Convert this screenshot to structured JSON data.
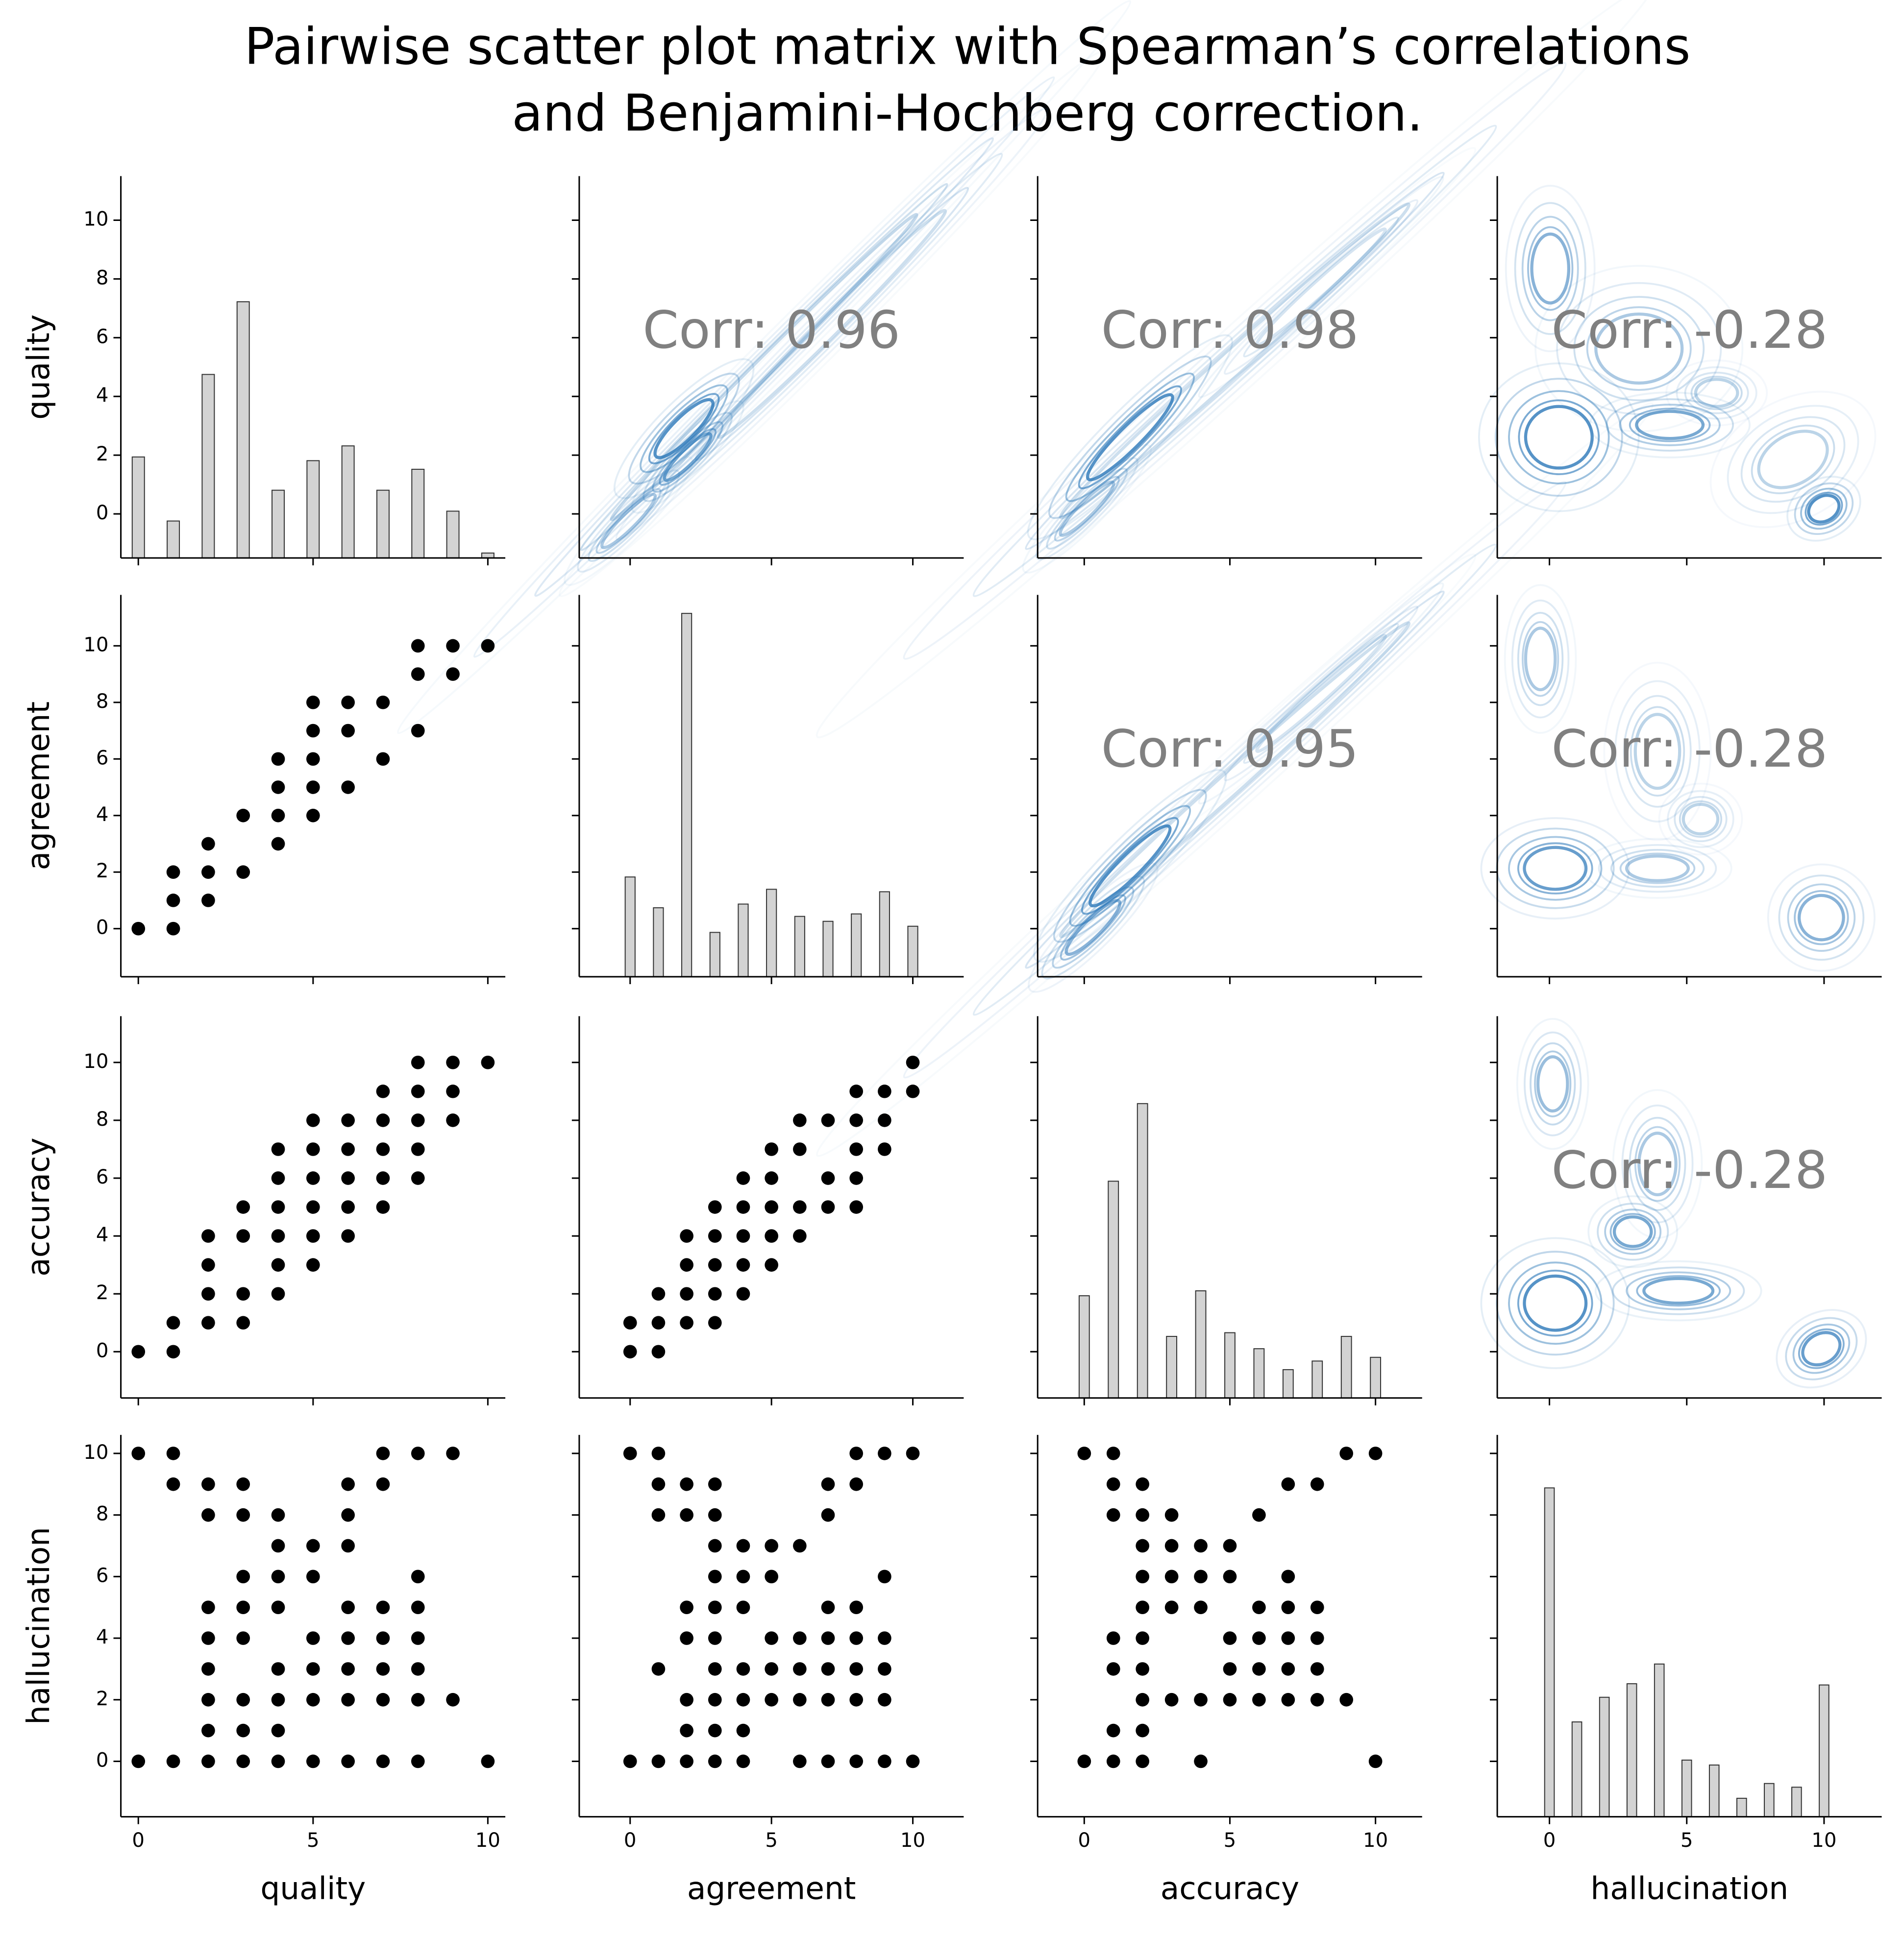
{
  "chart_data": {
    "type": "pairplot",
    "title": [
      "Pairwise scatter plot matrix with Spearman’s correlations",
      "and Benjamini-Hochberg correction."
    ],
    "variables": [
      "quality",
      "agreement",
      "accuracy",
      "hallucination"
    ],
    "axes": [
      {
        "xlim": [
          -0.5,
          10.5
        ],
        "xticks": [
          0,
          5,
          10
        ],
        "ylim": [
          -1.5,
          11.5
        ],
        "yticks": [
          0,
          2,
          4,
          6,
          8,
          10
        ]
      },
      {
        "xlim": [
          -1.8,
          11.8
        ],
        "xticks": [
          0,
          5,
          10
        ],
        "ylim": [
          -1.7,
          11.8
        ],
        "yticks": [
          0,
          2,
          4,
          6,
          8,
          10
        ]
      },
      {
        "xlim": [
          -1.6,
          11.6
        ],
        "xticks": [
          0,
          5,
          10
        ],
        "ylim": [
          -1.6,
          11.6
        ],
        "yticks": [
          0,
          2,
          4,
          6,
          8,
          10
        ]
      },
      {
        "xlim": [
          -1.9,
          12.1
        ],
        "xticks": [
          0,
          5,
          10
        ],
        "ylim": [
          -1.8,
          10.6
        ],
        "yticks": [
          0,
          2,
          4,
          6,
          8,
          10
        ]
      }
    ],
    "rows": [
      [
        {
          "type": "hist",
          "color": "#d3d3d3",
          "x": [
            0,
            1,
            2,
            3,
            4,
            5,
            6,
            7,
            8,
            9,
            10
          ],
          "values": [
            8.2,
            3.0,
            14.9,
            20.8,
            5.5,
            7.9,
            9.1,
            5.5,
            7.2,
            3.8,
            0.4
          ],
          "ylim": [
            0,
            31
          ]
        },
        {
          "type": "kde",
          "color": "#2171b5",
          "annotation": "Corr: 0.96"
        },
        {
          "type": "kde",
          "color": "#2171b5",
          "annotation": "Corr: 0.98"
        },
        {
          "type": "kde",
          "color": "#2171b5",
          "annotation": "Corr: -0.28"
        }
      ],
      [
        {
          "type": "scatter",
          "color": "#000000",
          "x": [
            0,
            1,
            1,
            1,
            2,
            2,
            2,
            3,
            3,
            4,
            4,
            4,
            4,
            5,
            5,
            5,
            5,
            5,
            6,
            6,
            6,
            7,
            7,
            8,
            8,
            8,
            9,
            9,
            10
          ],
          "y": [
            0,
            0,
            1,
            2,
            1,
            2,
            3,
            2,
            4,
            3,
            4,
            5,
            6,
            4,
            5,
            6,
            7,
            8,
            5,
            7,
            8,
            6,
            8,
            7,
            9,
            10,
            9,
            10,
            10
          ]
        },
        {
          "type": "hist",
          "color": "#d3d3d3",
          "x": [
            0,
            1,
            2,
            3,
            4,
            5,
            6,
            7,
            8,
            9,
            10
          ],
          "values": [
            8.1,
            5.6,
            29.5,
            3.6,
            5.9,
            7.1,
            4.9,
            4.5,
            5.1,
            6.9,
            4.1
          ],
          "ylim": [
            0,
            31
          ]
        },
        {
          "type": "kde",
          "color": "#2171b5",
          "annotation": "Corr: 0.95"
        },
        {
          "type": "kde",
          "color": "#2171b5",
          "annotation": "Corr: -0.28"
        }
      ],
      [
        {
          "type": "scatter",
          "color": "#000000",
          "x": [
            0,
            1,
            1,
            2,
            2,
            2,
            2,
            3,
            3,
            3,
            3,
            4,
            4,
            4,
            4,
            4,
            4,
            5,
            5,
            5,
            5,
            5,
            5,
            6,
            6,
            6,
            6,
            6,
            7,
            7,
            7,
            7,
            7,
            8,
            8,
            8,
            8,
            8,
            9,
            9,
            9,
            10
          ],
          "y": [
            0,
            0,
            1,
            1,
            2,
            3,
            4,
            1,
            2,
            4,
            5,
            2,
            3,
            4,
            5,
            6,
            7,
            3,
            4,
            5,
            6,
            7,
            8,
            4,
            5,
            6,
            7,
            8,
            5,
            6,
            7,
            8,
            9,
            6,
            7,
            8,
            9,
            10,
            8,
            9,
            10,
            10
          ]
        },
        {
          "type": "scatter",
          "color": "#000000",
          "x": [
            0,
            0,
            1,
            1,
            1,
            2,
            2,
            2,
            2,
            3,
            3,
            3,
            3,
            3,
            4,
            4,
            4,
            4,
            4,
            5,
            5,
            5,
            5,
            5,
            6,
            6,
            6,
            6,
            7,
            7,
            7,
            8,
            8,
            8,
            8,
            8,
            9,
            9,
            9,
            10,
            10
          ],
          "y": [
            0,
            1,
            0,
            1,
            2,
            1,
            2,
            3,
            4,
            1,
            2,
            3,
            4,
            5,
            2,
            3,
            4,
            5,
            6,
            3,
            4,
            5,
            6,
            7,
            4,
            5,
            7,
            8,
            5,
            6,
            8,
            5,
            6,
            7,
            8,
            9,
            7,
            8,
            9,
            9,
            10
          ]
        },
        {
          "type": "hist",
          "color": "#d3d3d3",
          "x": [
            0,
            1,
            2,
            3,
            4,
            5,
            6,
            7,
            8,
            9,
            10
          ],
          "values": [
            8.3,
            17.6,
            23.9,
            5.0,
            8.7,
            5.3,
            4.0,
            2.3,
            3.0,
            5.0,
            3.3
          ],
          "ylim": [
            0,
            31
          ]
        },
        {
          "type": "kde",
          "color": "#2171b5",
          "annotation": "Corr: -0.28"
        }
      ],
      [
        {
          "type": "scatter",
          "color": "#000000",
          "x": [
            0,
            0,
            1,
            1,
            1,
            2,
            2,
            2,
            2,
            2,
            2,
            2,
            2,
            3,
            3,
            3,
            3,
            3,
            3,
            3,
            3,
            4,
            4,
            4,
            4,
            4,
            4,
            4,
            4,
            5,
            5,
            5,
            5,
            5,
            5,
            6,
            6,
            6,
            6,
            6,
            6,
            6,
            6,
            7,
            7,
            7,
            7,
            7,
            7,
            7,
            8,
            8,
            8,
            8,
            8,
            8,
            8,
            9,
            9,
            10
          ],
          "y": [
            0,
            10,
            0,
            9,
            10,
            0,
            1,
            2,
            3,
            4,
            5,
            8,
            9,
            0,
            1,
            2,
            4,
            5,
            6,
            8,
            9,
            0,
            1,
            2,
            3,
            5,
            6,
            7,
            8,
            0,
            2,
            3,
            4,
            6,
            7,
            0,
            2,
            3,
            4,
            5,
            7,
            8,
            9,
            0,
            2,
            3,
            4,
            5,
            9,
            10,
            0,
            2,
            3,
            4,
            5,
            6,
            10,
            2,
            10,
            0
          ]
        },
        {
          "type": "scatter",
          "color": "#000000",
          "x": [
            0,
            0,
            1,
            1,
            1,
            1,
            1,
            2,
            2,
            2,
            2,
            2,
            2,
            2,
            3,
            3,
            3,
            3,
            3,
            3,
            3,
            3,
            3,
            3,
            4,
            4,
            4,
            4,
            4,
            4,
            4,
            5,
            5,
            5,
            5,
            5,
            6,
            6,
            6,
            6,
            6,
            7,
            7,
            7,
            7,
            7,
            7,
            7,
            8,
            8,
            8,
            8,
            8,
            8,
            8,
            9,
            9,
            9,
            9,
            9,
            9,
            10,
            10
          ],
          "y": [
            0,
            10,
            0,
            3,
            8,
            9,
            10,
            0,
            1,
            2,
            4,
            5,
            8,
            9,
            0,
            1,
            2,
            3,
            4,
            5,
            6,
            7,
            8,
            9,
            0,
            1,
            2,
            3,
            5,
            6,
            7,
            2,
            3,
            4,
            6,
            7,
            0,
            2,
            3,
            4,
            7,
            0,
            2,
            3,
            4,
            5,
            8,
            9,
            0,
            2,
            3,
            4,
            5,
            9,
            10,
            0,
            2,
            3,
            4,
            6,
            10,
            0,
            10
          ]
        },
        {
          "type": "scatter",
          "color": "#000000",
          "x": [
            0,
            0,
            1,
            1,
            1,
            1,
            1,
            1,
            1,
            2,
            2,
            2,
            2,
            2,
            2,
            2,
            2,
            2,
            2,
            3,
            3,
            3,
            3,
            3,
            4,
            4,
            4,
            4,
            4,
            5,
            5,
            5,
            5,
            5,
            6,
            6,
            6,
            6,
            6,
            7,
            7,
            7,
            7,
            7,
            7,
            8,
            8,
            8,
            8,
            8,
            9,
            9,
            10,
            10
          ],
          "y": [
            0,
            10,
            0,
            1,
            3,
            4,
            8,
            9,
            10,
            0,
            1,
            2,
            3,
            4,
            5,
            6,
            7,
            8,
            9,
            2,
            5,
            6,
            7,
            8,
            0,
            2,
            5,
            6,
            7,
            2,
            3,
            4,
            6,
            7,
            2,
            3,
            4,
            5,
            8,
            2,
            3,
            4,
            5,
            6,
            9,
            2,
            3,
            4,
            5,
            9,
            2,
            10,
            0,
            10
          ]
        },
        {
          "type": "hist",
          "color": "#d3d3d3",
          "x": [
            0,
            1,
            2,
            3,
            4,
            5,
            6,
            7,
            8,
            9,
            10
          ],
          "values": [
            26.7,
            7.7,
            9.7,
            10.8,
            12.4,
            4.6,
            4.2,
            1.5,
            2.7,
            2.4,
            10.7
          ],
          "ylim": [
            0,
            31
          ]
        }
      ]
    ]
  }
}
